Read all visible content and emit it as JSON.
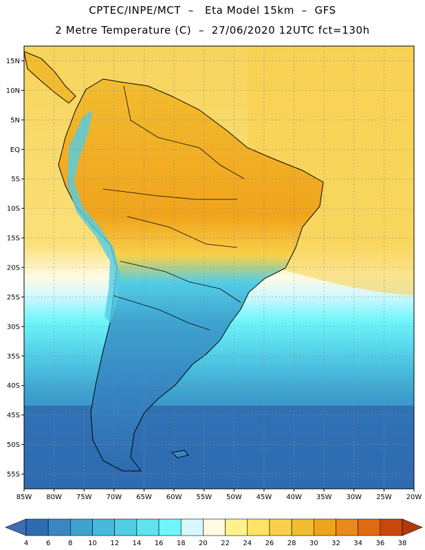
{
  "header": {
    "line1": "CPTEC/INPE/MCT  –   Eta Model 15km  –  GFS",
    "line2": "2 Metre Temperature (C)  –  27/06/2020 12UTC fct=130h"
  },
  "axes": {
    "lat_labels": [
      "15N",
      "10N",
      "5N",
      "EQ",
      "5S",
      "10S",
      "15S",
      "20S",
      "25S",
      "30S",
      "35S",
      "40S",
      "45S",
      "50S",
      "55S"
    ],
    "lon_labels": [
      "85W",
      "80W",
      "75W",
      "70W",
      "65W",
      "60W",
      "55W",
      "50W",
      "45W",
      "40W",
      "35W",
      "30W",
      "25W",
      "20W"
    ],
    "lat_range": [
      17.5,
      -57.5
    ],
    "lon_range": [
      -85,
      -20
    ]
  },
  "legend": {
    "ticks": [
      "4",
      "6",
      "8",
      "10",
      "12",
      "14",
      "16",
      "18",
      "20",
      "22",
      "24",
      "26",
      "28",
      "30",
      "32",
      "34",
      "36",
      "38"
    ],
    "colors": [
      "#3b6fb5",
      "#2f6bb0",
      "#3787c4",
      "#3ea3cf",
      "#48b9dc",
      "#52cde6",
      "#5fe3ef",
      "#6ff6fb",
      "#d7f8fd",
      "#fffbe2",
      "#fff28e",
      "#fde463",
      "#f8d04a",
      "#f2bc30",
      "#f0a41c",
      "#e98a1b",
      "#df6a13",
      "#c8470b",
      "#b23a08"
    ]
  },
  "map_layers": {
    "background": "#f5cb52",
    "ocean_warm": "#f8d357",
    "land": "#f2ba3a",
    "cold_sea": "#3b7ec2"
  }
}
